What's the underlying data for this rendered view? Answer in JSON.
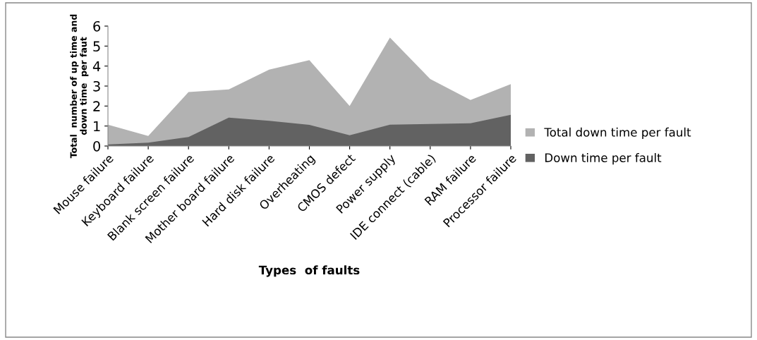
{
  "chart_data": {
    "type": "area",
    "xlabel": "Types  of faults",
    "ylabel": "Total  number of up time and\ndown time  per faut",
    "categories": [
      "Mouse failure",
      "Keyboard failure",
      "Blank screen failure",
      "Mother board failure",
      "Hard disk failure",
      "Overheating",
      "CMOS defect",
      "Power supply",
      "IDE connect (cable)",
      "RAM failure",
      "Processor failure"
    ],
    "series": [
      {
        "name": "Total down time per fault",
        "color": "#b2b2b2",
        "values": [
          1.07,
          0.5,
          2.7,
          2.83,
          3.82,
          4.3,
          2.0,
          5.43,
          3.35,
          2.3,
          3.1
        ]
      },
      {
        "name": "Down time per fault",
        "color": "#626262",
        "values": [
          0.08,
          0.17,
          0.45,
          1.42,
          1.26,
          1.06,
          0.54,
          1.07,
          1.1,
          1.14,
          1.56
        ]
      }
    ],
    "ylim": [
      0,
      6
    ],
    "yticks": [
      0,
      1,
      2,
      3,
      4,
      5,
      6
    ],
    "grid": false,
    "legend": "right"
  }
}
